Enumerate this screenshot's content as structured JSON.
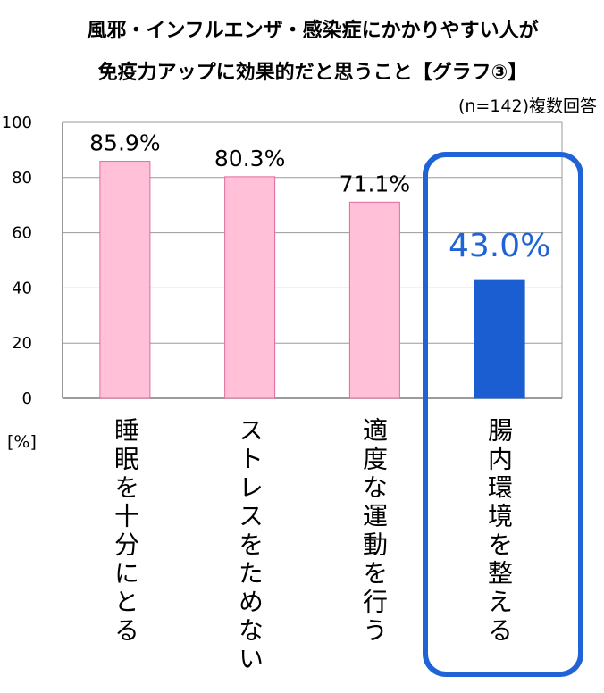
{
  "chart_data": {
    "type": "bar",
    "title_lines": [
      "風邪・インフルエンザ・感染症にかかりやすい人が",
      "免疫力アップに効果的だと思うこと【グラフ③】"
    ],
    "subtitle": "(n=142)複数回答",
    "ylabel": "[%]",
    "ylim": [
      0,
      100
    ],
    "yticks": [
      0,
      20,
      40,
      60,
      80,
      100
    ],
    "grid": true,
    "categories": [
      "睡眠を十分にとる",
      "ストレスをためない",
      "適度な運動を行う",
      "腸内環境を整える"
    ],
    "values": [
      85.9,
      80.3,
      71.1,
      43.0
    ],
    "data_labels": [
      "85.9%",
      "80.3%",
      "71.1%",
      "43.0%"
    ],
    "highlight_index": 3
  },
  "colors": {
    "bar": "#ffc0d8",
    "bar_stroke": "#e36a9b",
    "highlight_bar": "#1a5ed2",
    "highlight_label": "#1f63d6",
    "highlight_frame": "#1f63d6",
    "grid": "#9a9a9a",
    "axis": "#7a7a7a"
  }
}
